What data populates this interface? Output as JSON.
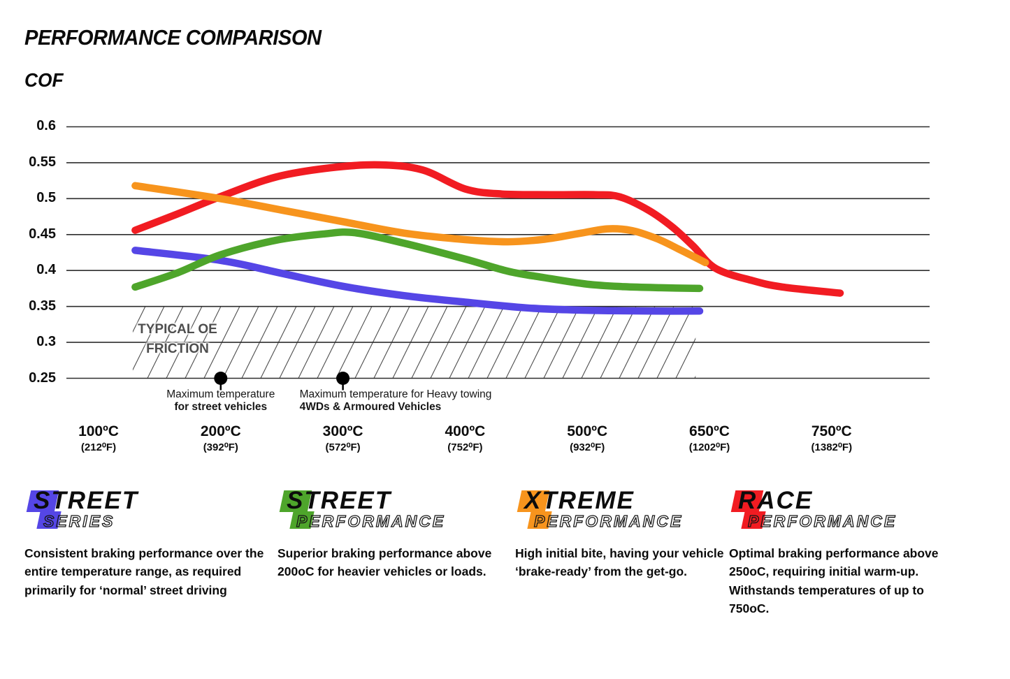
{
  "chart_data": {
    "type": "line",
    "title": "PERFORMANCE COMPARISON",
    "ylabel": "COF",
    "xlabel": "",
    "grid": true,
    "ylim": [
      0.25,
      0.6
    ],
    "y_ticks": [
      "0.6",
      "0.55",
      "0.5",
      "0.45",
      "0.4",
      "0.35",
      "0.3",
      "0.25"
    ],
    "x_ticks": [
      {
        "t": 100,
        "c": "100ºC",
        "f": "(212⁰F)"
      },
      {
        "t": 200,
        "c": "200ºC",
        "f": "(392⁰F)"
      },
      {
        "t": 300,
        "c": "300ºC",
        "f": "(572⁰F)"
      },
      {
        "t": 400,
        "c": "400ºC",
        "f": "(752⁰F)"
      },
      {
        "t": 500,
        "c": "500ºC",
        "f": "(932⁰F)"
      },
      {
        "t": 650,
        "c": "650ºC",
        "f": "(1202⁰F)"
      },
      {
        "t": 750,
        "c": "750ºC",
        "f": "(1382⁰F)"
      }
    ],
    "series": [
      {
        "name": "Street Series",
        "color": "#5546e6",
        "points": [
          [
            130,
            0.428
          ],
          [
            200,
            0.414
          ],
          [
            250,
            0.396
          ],
          [
            300,
            0.378
          ],
          [
            350,
            0.365
          ],
          [
            400,
            0.356
          ],
          [
            450,
            0.348
          ],
          [
            490,
            0.345
          ],
          [
            530,
            0.344
          ],
          [
            580,
            0.3435
          ],
          [
            638,
            0.3435
          ]
        ]
      },
      {
        "name": "Race Performance",
        "color": "#f11c22",
        "points": [
          [
            130,
            0.456
          ],
          [
            165,
            0.479
          ],
          [
            200,
            0.503
          ],
          [
            245,
            0.53
          ],
          [
            290,
            0.543
          ],
          [
            330,
            0.547
          ],
          [
            365,
            0.54
          ],
          [
            400,
            0.5135
          ],
          [
            430,
            0.5065
          ],
          [
            470,
            0.5055
          ],
          [
            510,
            0.5055
          ],
          [
            540,
            0.5025
          ],
          [
            575,
            0.484
          ],
          [
            605,
            0.46
          ],
          [
            630,
            0.434
          ],
          [
            655,
            0.403
          ],
          [
            685,
            0.386
          ],
          [
            710,
            0.377
          ],
          [
            757,
            0.3685
          ]
        ]
      },
      {
        "name": "Xtreme Performance",
        "color": "#f7941d",
        "points": [
          [
            130,
            0.518
          ],
          [
            200,
            0.5
          ],
          [
            250,
            0.484
          ],
          [
            300,
            0.468
          ],
          [
            350,
            0.452
          ],
          [
            400,
            0.443
          ],
          [
            435,
            0.44
          ],
          [
            465,
            0.4435
          ],
          [
            495,
            0.452
          ],
          [
            525,
            0.458
          ],
          [
            555,
            0.4555
          ],
          [
            585,
            0.4445
          ],
          [
            612,
            0.43
          ],
          [
            645,
            0.411
          ]
        ]
      },
      {
        "name": "Street Performance",
        "color": "#4ea52b",
        "points": [
          [
            130,
            0.377
          ],
          [
            165,
            0.397
          ],
          [
            200,
            0.422
          ],
          [
            245,
            0.442
          ],
          [
            285,
            0.451
          ],
          [
            310,
            0.4525
          ],
          [
            350,
            0.438
          ],
          [
            400,
            0.416
          ],
          [
            435,
            0.399
          ],
          [
            465,
            0.39
          ],
          [
            500,
            0.381
          ],
          [
            545,
            0.3775
          ],
          [
            590,
            0.376
          ],
          [
            638,
            0.375
          ]
        ]
      }
    ],
    "oe_band": {
      "label_line1": "TYPICAL OE",
      "label_line2": "FRICTION",
      "cof_min": 0.25,
      "cof_max": 0.35,
      "temp_min": 128,
      "temp_max": 633
    },
    "annotations": [
      {
        "temp": 200,
        "cof": 0.25,
        "marker": "dot",
        "align": "center",
        "line1": "Maximum temperature",
        "line2": "for street vehicles"
      },
      {
        "temp": 300,
        "cof": 0.25,
        "marker": "dot",
        "align": "left",
        "line1": "Maximum temperature for Heavy towing",
        "line2": "4WDs & Armoured Vehicles"
      }
    ],
    "legend_position": "bottom"
  },
  "legend": [
    {
      "id": "street-series",
      "word1": "STREET",
      "word2": "SERIES",
      "color": "#5546e6",
      "description": "Consistent braking performance over the entire temperature range, as required primarily for ‘normal’ street driving"
    },
    {
      "id": "street-performance",
      "word1": "STREET",
      "word2": "PERFORMANCE",
      "color": "#4ea52b",
      "description": "Superior braking performance above 200oC for heavier vehicles or loads."
    },
    {
      "id": "xtreme-performance",
      "word1": "XTREME",
      "word2": "PERFORMANCE",
      "color": "#f7941d",
      "description": "High initial bite, having your vehicle ‘brake-ready’ from the get-go."
    },
    {
      "id": "race-performance",
      "word1": "RACE",
      "word2": "PERFORMANCE",
      "color": "#f11c22",
      "description": "Optimal braking performance above 250oC, requiring initial warm-up. Withstands temperatures of up to 750oC."
    }
  ]
}
